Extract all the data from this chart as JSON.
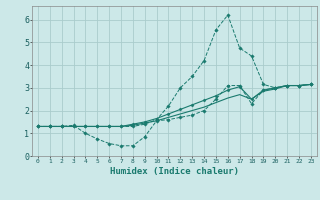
{
  "xlabel": "Humidex (Indice chaleur)",
  "bg_color": "#cce8e8",
  "grid_color": "#aacccc",
  "line_color": "#1a7a6e",
  "xlim": [
    -0.5,
    23.5
  ],
  "ylim": [
    0,
    6.6
  ],
  "xticks": [
    0,
    1,
    2,
    3,
    4,
    5,
    6,
    7,
    8,
    9,
    10,
    11,
    12,
    13,
    14,
    15,
    16,
    17,
    18,
    19,
    20,
    21,
    22,
    23
  ],
  "yticks": [
    0,
    1,
    2,
    3,
    4,
    5,
    6
  ],
  "series": [
    {
      "x": [
        0,
        1,
        2,
        3,
        4,
        5,
        6,
        7,
        8,
        9,
        10,
        11,
        12,
        13,
        14,
        15,
        16,
        17,
        18,
        19,
        20,
        21,
        22,
        23
      ],
      "y": [
        1.3,
        1.3,
        1.3,
        1.35,
        1.0,
        0.75,
        0.55,
        0.45,
        0.45,
        0.85,
        1.55,
        1.6,
        1.7,
        1.8,
        2.0,
        2.5,
        3.1,
        3.1,
        2.3,
        2.9,
        3.0,
        3.1,
        3.1,
        3.15
      ],
      "style": "dotted_marker"
    },
    {
      "x": [
        0,
        1,
        2,
        3,
        4,
        5,
        6,
        7,
        8,
        9,
        10,
        11,
        12,
        13,
        14,
        15,
        16,
        17,
        18,
        19,
        20,
        21,
        22,
        23
      ],
      "y": [
        1.3,
        1.3,
        1.3,
        1.3,
        1.3,
        1.3,
        1.3,
        1.3,
        1.35,
        1.45,
        1.55,
        1.7,
        1.85,
        2.0,
        2.15,
        2.35,
        2.55,
        2.7,
        2.5,
        2.85,
        2.95,
        3.1,
        3.1,
        3.15
      ],
      "style": "solid_nomarker"
    },
    {
      "x": [
        0,
        1,
        2,
        3,
        4,
        5,
        6,
        7,
        8,
        9,
        10,
        11,
        12,
        13,
        14,
        15,
        16,
        17,
        18,
        19,
        20,
        21,
        22,
        23
      ],
      "y": [
        1.3,
        1.3,
        1.3,
        1.3,
        1.3,
        1.3,
        1.3,
        1.3,
        1.4,
        1.5,
        1.65,
        1.85,
        2.05,
        2.25,
        2.45,
        2.65,
        2.9,
        3.05,
        2.5,
        2.9,
        3.0,
        3.1,
        3.1,
        3.15
      ],
      "style": "solid_marker"
    },
    {
      "x": [
        0,
        1,
        2,
        3,
        4,
        5,
        6,
        7,
        8,
        9,
        10,
        11,
        12,
        13,
        14,
        15,
        16,
        17,
        18,
        19,
        20,
        21,
        22,
        23
      ],
      "y": [
        1.3,
        1.3,
        1.3,
        1.3,
        1.3,
        1.3,
        1.3,
        1.3,
        1.3,
        1.4,
        1.6,
        2.2,
        3.0,
        3.5,
        4.2,
        5.55,
        6.2,
        4.75,
        4.4,
        3.15,
        3.0,
        3.1,
        3.1,
        3.15
      ],
      "style": "dotted_marker"
    }
  ]
}
